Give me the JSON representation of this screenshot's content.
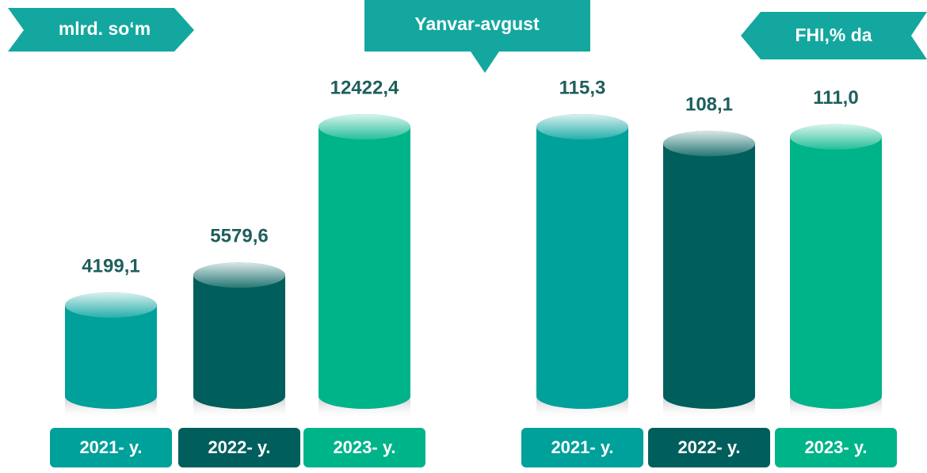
{
  "title": "Yanvar-avgust",
  "chart_data": [
    {
      "type": "bar",
      "label": "mlrd. so‘m",
      "categories": [
        "2021- y.",
        "2022- y.",
        "2023- y."
      ],
      "values": [
        4199.1,
        5579.6,
        12422.4
      ],
      "value_labels": [
        "4199,1",
        "5579,6",
        "12422,4"
      ],
      "colors": [
        "#00a09b",
        "#005f5c",
        "#00b489"
      ]
    },
    {
      "type": "bar",
      "label": "FHI,% da",
      "categories": [
        "2021- y.",
        "2022- y.",
        "2023- y."
      ],
      "values": [
        115.3,
        108.1,
        111.0
      ],
      "value_labels": [
        "115,3",
        "108,1",
        "111,0"
      ],
      "colors": [
        "#00a09b",
        "#005f5c",
        "#00b489"
      ]
    }
  ]
}
